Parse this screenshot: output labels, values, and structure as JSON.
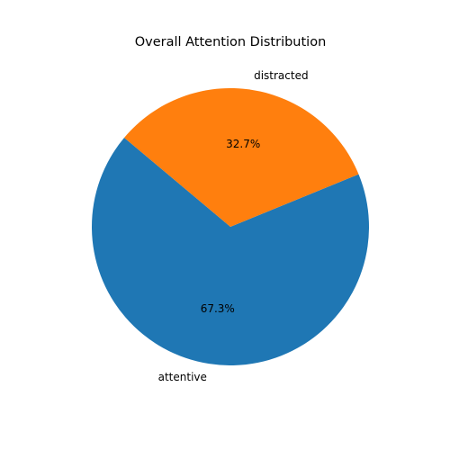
{
  "chart_data": {
    "type": "pie",
    "title": "Overall Attention Distribution",
    "labels": [
      "attentive",
      "distracted"
    ],
    "values": [
      67.3,
      32.7
    ],
    "percent_labels": [
      "67.3%",
      "32.7%"
    ],
    "colors": [
      "#1f77b4",
      "#ff7f0e"
    ],
    "start_angle_deg": 140,
    "direction": "counterclockwise",
    "legend": "none"
  }
}
